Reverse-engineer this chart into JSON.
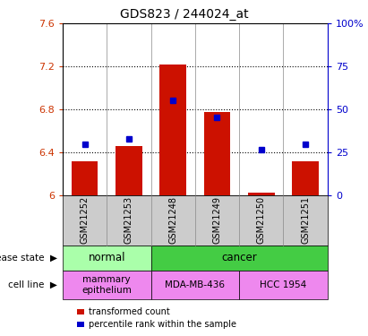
{
  "title": "GDS823 / 244024_at",
  "samples": [
    "GSM21252",
    "GSM21253",
    "GSM21248",
    "GSM21249",
    "GSM21250",
    "GSM21251"
  ],
  "bar_values": [
    6.31,
    6.46,
    7.22,
    6.77,
    6.02,
    6.31
  ],
  "percentile_values": [
    6.47,
    6.52,
    6.88,
    6.72,
    6.42,
    6.47
  ],
  "ylim_left": [
    6.0,
    7.6
  ],
  "ylim_right": [
    0,
    100
  ],
  "yticks_left": [
    6.0,
    6.4,
    6.8,
    7.2,
    7.6
  ],
  "ytick_labels_left": [
    "6",
    "6.4",
    "6.8",
    "7.2",
    "7.6"
  ],
  "yticks_right": [
    0,
    25,
    50,
    75,
    100
  ],
  "ytick_labels_right": [
    "0",
    "25",
    "50",
    "75",
    "100%"
  ],
  "bar_color": "#CC1100",
  "dot_color": "#0000CC",
  "disease_state_groups": [
    {
      "label": "normal",
      "cols": [
        0,
        1
      ],
      "color": "#AAFFAA"
    },
    {
      "label": "cancer",
      "cols": [
        2,
        3,
        4,
        5
      ],
      "color": "#44CC44"
    }
  ],
  "cell_line_groups": [
    {
      "label": "mammary\nepithelium",
      "cols": [
        0,
        1
      ],
      "color": "#EE88EE"
    },
    {
      "label": "MDA-MB-436",
      "cols": [
        2,
        3
      ],
      "color": "#EE88EE"
    },
    {
      "label": "HCC 1954",
      "cols": [
        4,
        5
      ],
      "color": "#EE88EE"
    }
  ],
  "legend_bar_label": "transformed count",
  "legend_dot_label": "percentile rank within the sample",
  "disease_state_label": "disease state",
  "cell_line_label": "cell line",
  "bar_width": 0.6,
  "bg_color": "#CCCCCC",
  "left_label_color": "#555555"
}
